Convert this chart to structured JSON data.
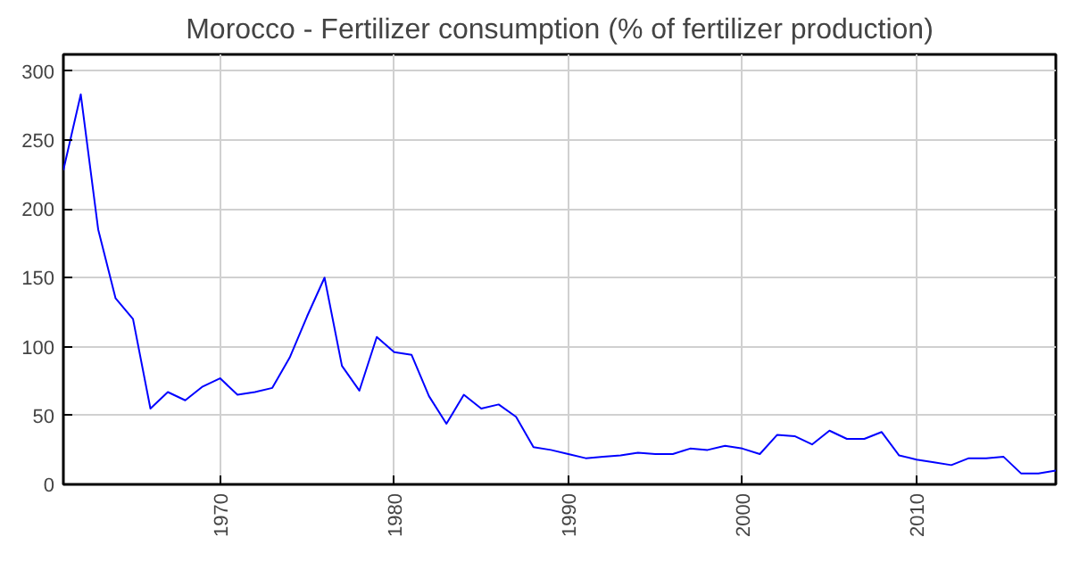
{
  "chart_data": {
    "type": "line",
    "title": "Morocco - Fertilizer consumption (% of fertilizer production)",
    "x": [
      1961,
      1962,
      1963,
      1964,
      1965,
      1966,
      1967,
      1968,
      1969,
      1970,
      1971,
      1972,
      1973,
      1974,
      1975,
      1976,
      1977,
      1978,
      1979,
      1980,
      1981,
      1982,
      1983,
      1984,
      1985,
      1986,
      1987,
      1988,
      1989,
      1990,
      1991,
      1992,
      1993,
      1994,
      1995,
      1996,
      1997,
      1998,
      1999,
      2000,
      2001,
      2002,
      2003,
      2004,
      2005,
      2006,
      2007,
      2008,
      2009,
      2010,
      2011,
      2012,
      2013,
      2014,
      2015,
      2016,
      2017,
      2018
    ],
    "series": [
      {
        "color": "#0000ff",
        "values": [
          228,
          283,
          185,
          135,
          120,
          55,
          67,
          61,
          71,
          77,
          65,
          67,
          70,
          92,
          122,
          150,
          86,
          68,
          107,
          96,
          94,
          64,
          44,
          65,
          55,
          58,
          49,
          27,
          25,
          22,
          19,
          20,
          21,
          23,
          22,
          22,
          26,
          25,
          28,
          26,
          22,
          36,
          35,
          29,
          39,
          33,
          33,
          38,
          21,
          18,
          16,
          14,
          19,
          19,
          20,
          8,
          8,
          10
        ]
      }
    ],
    "xlim": [
      1961,
      2018
    ],
    "xticks": [
      1970,
      1980,
      1990,
      2000,
      2010
    ],
    "ylim": [
      0,
      312
    ],
    "yticks": [
      0,
      50,
      100,
      150,
      200,
      250,
      300
    ],
    "grid": true,
    "marker": "none",
    "line_style": "solid"
  }
}
